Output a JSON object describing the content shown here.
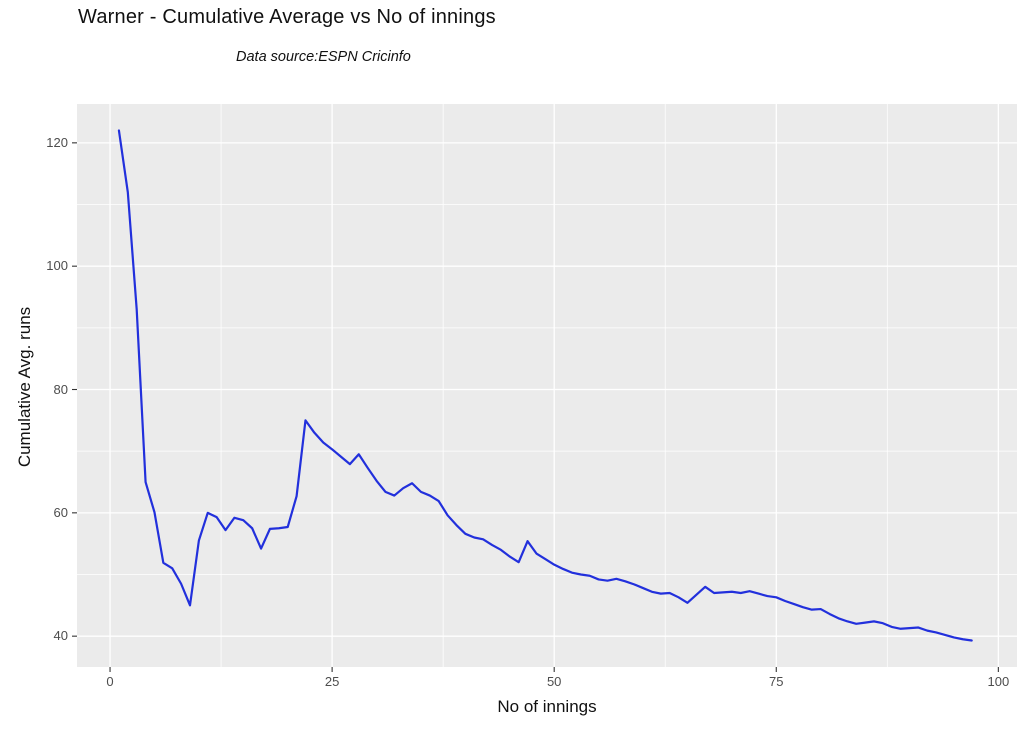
{
  "chart": {
    "title": "Warner - Cumulative Average vs No of innings",
    "subtitle": "Data source:ESPN Cricinfo",
    "xlabel": "No of innings",
    "ylabel": "Cumulative Avg. runs"
  },
  "chart_data": {
    "type": "line",
    "title": "Warner - Cumulative Average vs No of innings",
    "subtitle": "Data source:ESPN Cricinfo",
    "xlabel": "No of innings",
    "ylabel": "Cumulative Avg. runs",
    "legend": "none",
    "grid": true,
    "x_ticks": [
      0,
      25,
      50,
      75,
      100
    ],
    "y_ticks": [
      40,
      60,
      80,
      100,
      120
    ],
    "xlim": [
      -3.72,
      102.1
    ],
    "ylim": [
      35.0,
      126.3
    ],
    "series": [
      {
        "name": "cumulative-average-runs",
        "x": [
          1,
          2,
          3,
          4,
          5,
          6,
          7,
          8,
          9,
          10,
          11,
          12,
          13,
          14,
          15,
          16,
          17,
          18,
          19,
          20,
          21,
          22,
          23,
          24,
          25,
          26,
          27,
          28,
          29,
          30,
          31,
          32,
          33,
          34,
          35,
          36,
          37,
          38,
          39,
          40,
          41,
          42,
          43,
          44,
          45,
          46,
          47,
          48,
          49,
          50,
          51,
          52,
          53,
          54,
          55,
          56,
          57,
          58,
          59,
          60,
          61,
          62,
          63,
          64,
          65,
          66,
          67,
          68,
          69,
          70,
          71,
          72,
          73,
          74,
          75,
          76,
          77,
          78,
          79,
          80,
          81,
          82,
          83,
          84,
          85,
          86,
          87,
          88,
          89,
          90,
          91,
          92,
          93,
          94,
          95,
          96,
          97
        ],
        "y": [
          122,
          112,
          93,
          65,
          60.1,
          51.9,
          51,
          48.5,
          45,
          55.5,
          60,
          59.3,
          57.2,
          59.2,
          58.8,
          57.5,
          54.2,
          57.4,
          57.5,
          57.7,
          62.7,
          75,
          73,
          71.4,
          70.3,
          69.1,
          67.9,
          69.5,
          67.3,
          65.2,
          63.4,
          62.8,
          64,
          64.8,
          63.4,
          62.8,
          61.9,
          59.6,
          58,
          56.6,
          56,
          55.7,
          54.8,
          54,
          52.9,
          52,
          55.4,
          53.4,
          52.5,
          51.6,
          50.9,
          50.3,
          50,
          49.8,
          49.2,
          49,
          49.3,
          48.9,
          48.4,
          47.8,
          47.2,
          46.9,
          47,
          46.3,
          45.4,
          46.7,
          48,
          47,
          47.1,
          47.2,
          47,
          47.3,
          46.9,
          46.5,
          46.3,
          45.7,
          45.2,
          44.7,
          44.3,
          44.4,
          43.6,
          42.9,
          42.4,
          42,
          42.2,
          42.4,
          42.1,
          41.5,
          41.2,
          41.3,
          41.4,
          40.9,
          40.6,
          40.2,
          39.8,
          39.5,
          39.3
        ]
      }
    ]
  },
  "colors": {
    "line": "#2230DC",
    "panel_background": "#EBEBEB",
    "gridline": "#FFFFFF",
    "tick_text": "#4D4D4D",
    "tick_mark": "#333333",
    "title_text": "#111111"
  }
}
